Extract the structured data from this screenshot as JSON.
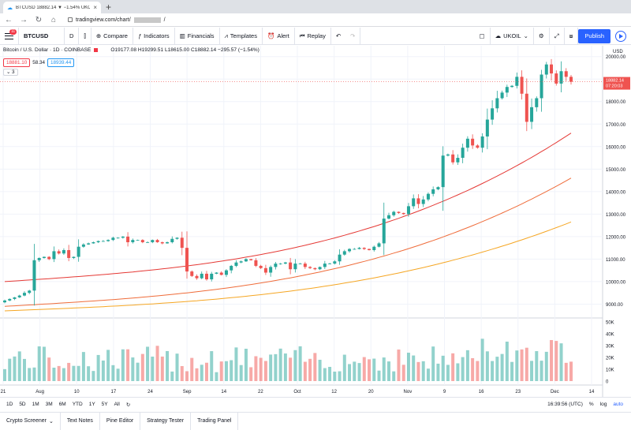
{
  "browser": {
    "tab_title": "BTCUSD 18882.14 ▼ −1.54% UKOIL",
    "url": "tradingview.com/chart/",
    "url_suffix": "/"
  },
  "toolbar": {
    "badge": "11",
    "symbol": "BTCUSD",
    "interval": "D",
    "compare": "Compare",
    "indicators": "Indicators",
    "financials": "Financials",
    "templates": "Templates",
    "alert": "Alert",
    "replay": "Replay",
    "layout_name": "UKOIL",
    "publish": "Publish"
  },
  "legend": {
    "name": "Bitcoin / U.S. Dollar · 1D · COINBASE",
    "ohlc": "O19177.08 H19299.51 L18615.00 C18882.14 −295.57 (−1.54%)",
    "bid": "18881.10",
    "spread": "58.34",
    "ask": "18939.44",
    "collapse": "3"
  },
  "price_axis": {
    "currency": "USD",
    "last_price": "18882.14",
    "countdown": "07:20:03"
  },
  "chart_data": {
    "type": "candlestick",
    "symbol": "BTCUSD",
    "timeframe": "1D",
    "y_range": [
      8700,
      20200
    ],
    "y_ticks": [
      "20000.00",
      "19000.00",
      "18000.00",
      "17000.00",
      "16000.00",
      "15000.00",
      "14000.00",
      "13000.00",
      "12000.00",
      "11000.00",
      "10000.00",
      "9000.00"
    ],
    "x_ticks": [
      "21",
      "Aug",
      "10",
      "17",
      "24",
      "Sep",
      "14",
      "22",
      "Oct",
      "12",
      "20",
      "Nov",
      "9",
      "16",
      "23",
      "Dec",
      "14"
    ],
    "volume_ticks": [
      "50K",
      "40K",
      "30K",
      "20K",
      "10K",
      "0"
    ],
    "closes": [
      9160,
      9230,
      9300,
      9380,
      9500,
      9600,
      10950,
      11050,
      11100,
      11000,
      11350,
      11250,
      11400,
      11050,
      11100,
      11550,
      11650,
      11700,
      11750,
      11800,
      11800,
      11850,
      11950,
      11950,
      12000,
      11750,
      11850,
      11850,
      11750,
      11750,
      11850,
      11750,
      11700,
      11750,
      11900,
      11950,
      11500,
      10450,
      10250,
      10150,
      10350,
      10100,
      10350,
      10400,
      10300,
      10500,
      10700,
      10850,
      10900,
      11000,
      10950,
      10700,
      10600,
      10400,
      10650,
      10800,
      10800,
      10850,
      10550,
      10800,
      10800,
      10650,
      10600,
      10550,
      10650,
      10800,
      10800,
      10900,
      11200,
      11350,
      11450,
      11450,
      11500,
      11450,
      11400,
      11550,
      11700,
      12800,
      12950,
      13100,
      13050,
      13000,
      13350,
      13700,
      13450,
      13650,
      13900,
      14100,
      14200,
      15600,
      15650,
      15300,
      15500,
      15950,
      16350,
      16050,
      15950,
      16450,
      17200,
      17700,
      18150,
      18400,
      18650,
      18700,
      19100,
      18350,
      17100,
      17750,
      18150,
      19200,
      19650,
      19250,
      18800,
      19350,
      19100,
      18882
    ],
    "moving_averages": [
      {
        "color": "#e53935",
        "start": 10000,
        "end": 16600
      },
      {
        "color": "#ef6c3a",
        "start": 8900,
        "end": 14600
      },
      {
        "color": "#f5a623",
        "start": 8700,
        "end": 12650
      }
    ]
  },
  "bottom_bar": {
    "ranges": [
      "1D",
      "5D",
      "1M",
      "3M",
      "6M",
      "YTD",
      "1Y",
      "5Y",
      "All"
    ],
    "clock": "16:39:56 (UTC)",
    "percent": "%",
    "log": "log",
    "auto": "auto"
  },
  "panels": [
    "Crypto Screener",
    "Text Notes",
    "Pine Editor",
    "Strategy Tester",
    "Trading Panel"
  ]
}
